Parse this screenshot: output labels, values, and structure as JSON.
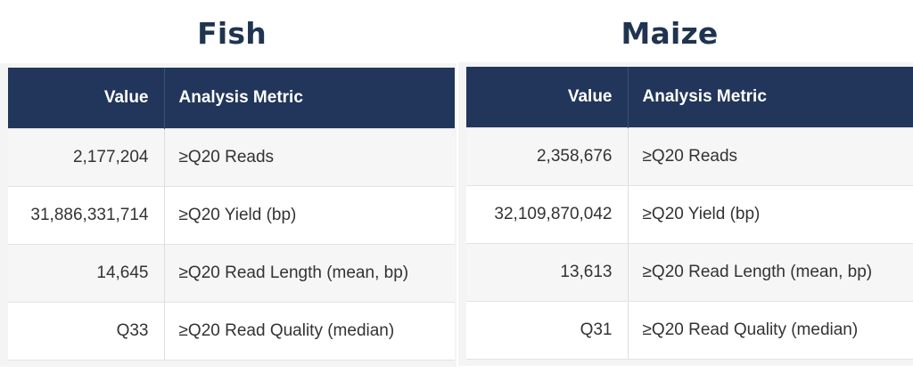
{
  "tables": [
    {
      "title": "Fish",
      "headers": {
        "value": "Value",
        "metric": "Analysis Metric"
      },
      "rows": [
        {
          "value": "2,177,204",
          "metric": "≥Q20 Reads"
        },
        {
          "value": "31,886,331,714",
          "metric": "≥Q20 Yield (bp)"
        },
        {
          "value": "14,645",
          "metric": "≥Q20 Read Length (mean, bp)"
        },
        {
          "value": "Q33",
          "metric": "≥Q20 Read Quality (median)"
        }
      ]
    },
    {
      "title": "Maize",
      "headers": {
        "value": "Value",
        "metric": "Analysis Metric"
      },
      "rows": [
        {
          "value": "2,358,676",
          "metric": "≥Q20 Reads"
        },
        {
          "value": "32,109,870,042",
          "metric": "≥Q20 Yield (bp)"
        },
        {
          "value": "13,613",
          "metric": "≥Q20 Read Length (mean, bp)"
        },
        {
          "value": "Q31",
          "metric": "≥Q20 Read Quality (median)"
        }
      ]
    }
  ],
  "colors": {
    "title": "#1f3450",
    "header_bg": "#21365a",
    "row_odd": "#f6f6f6",
    "row_even": "#ffffff"
  }
}
